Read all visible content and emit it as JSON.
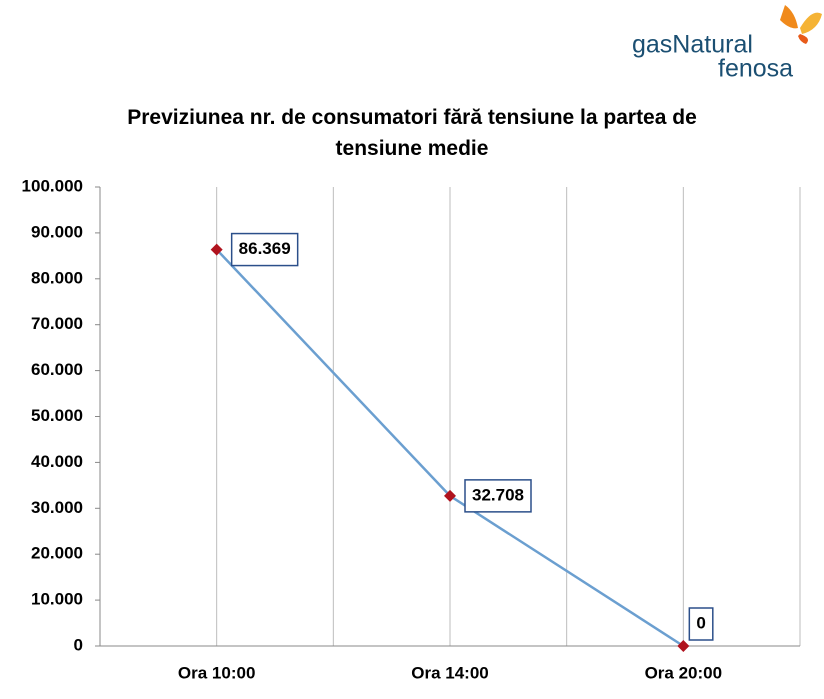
{
  "logo": {
    "line1": "gasNatural",
    "line2": "fenosa"
  },
  "chart_data": {
    "type": "line",
    "title": "Previziunea nr. de consumatori fără tensiune la partea de tensiune medie",
    "categories": [
      "Ora 10:00",
      "Ora 14:00",
      "Ora 20:00"
    ],
    "values": [
      86369,
      32708,
      0
    ],
    "value_labels": [
      "86.369",
      "32.708",
      "0"
    ],
    "color": "#6b9fd0",
    "marker_color": "#b0131e",
    "ylim": [
      0,
      100000
    ],
    "yticks": [
      0,
      {
        "value": 10000,
        "label": "10.000"
      },
      {
        "value": 20000,
        "label": "20.000"
      },
      {
        "value": 30000,
        "label": "30.000"
      },
      {
        "value": 40000,
        "label": "40.000"
      },
      {
        "value": 50000,
        "label": "50.000"
      },
      {
        "value": 60000,
        "label": "60.000"
      },
      {
        "value": 70000,
        "label": "70.000"
      },
      {
        "value": 80000,
        "label": "80.000"
      },
      {
        "value": 90000,
        "label": "90.000"
      },
      {
        "value": 100000,
        "label": "100.000"
      }
    ],
    "grid": "x"
  }
}
